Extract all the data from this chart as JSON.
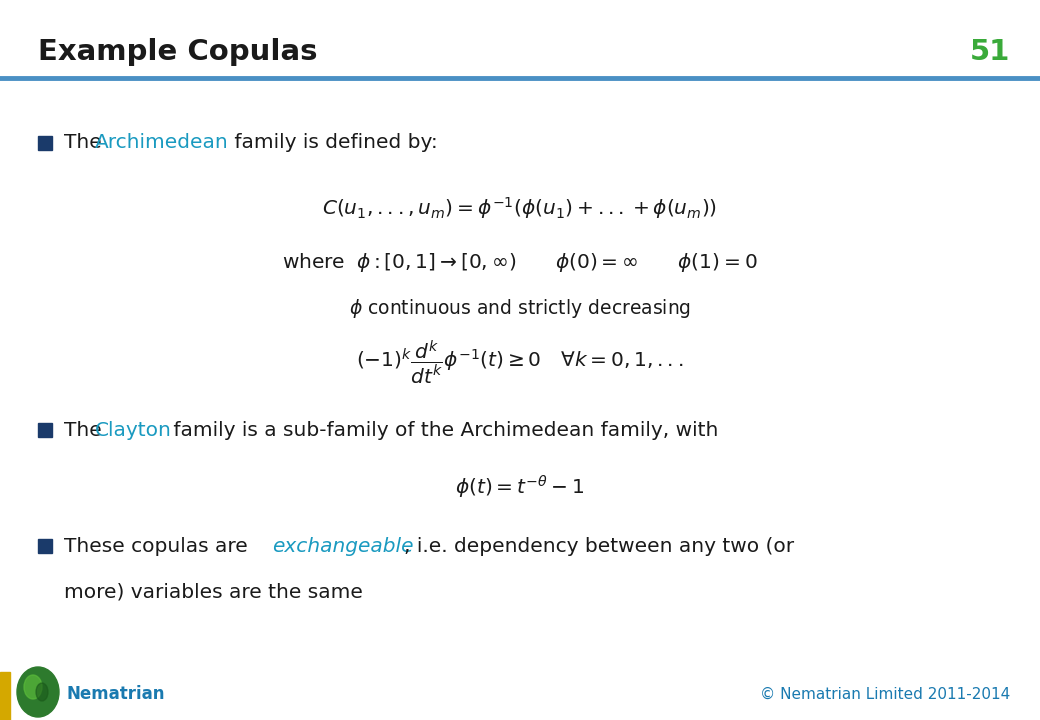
{
  "title": "Example Copulas",
  "slide_number": "51",
  "title_color": "#1a1a1a",
  "title_fontsize": 20,
  "slide_number_color": "#3aaa3a",
  "header_line_color": "#4a90c4",
  "background_color": "#ffffff",
  "bullet_square_color": "#1a3a6a",
  "archimedean_color": "#1a9ac0",
  "clayton_color": "#1a9ac0",
  "exchangeable_color": "#1a9ac0",
  "text_color": "#1a1a1a",
  "footer_brand": "Nematrian",
  "footer_brand_color": "#1a7ab0",
  "footer_copyright": "© Nematrian Limited 2011-2014",
  "footer_copyright_color": "#1a7ab0",
  "yellow_bar_color": "#d4a800",
  "logo_color": "#3a8a3a"
}
